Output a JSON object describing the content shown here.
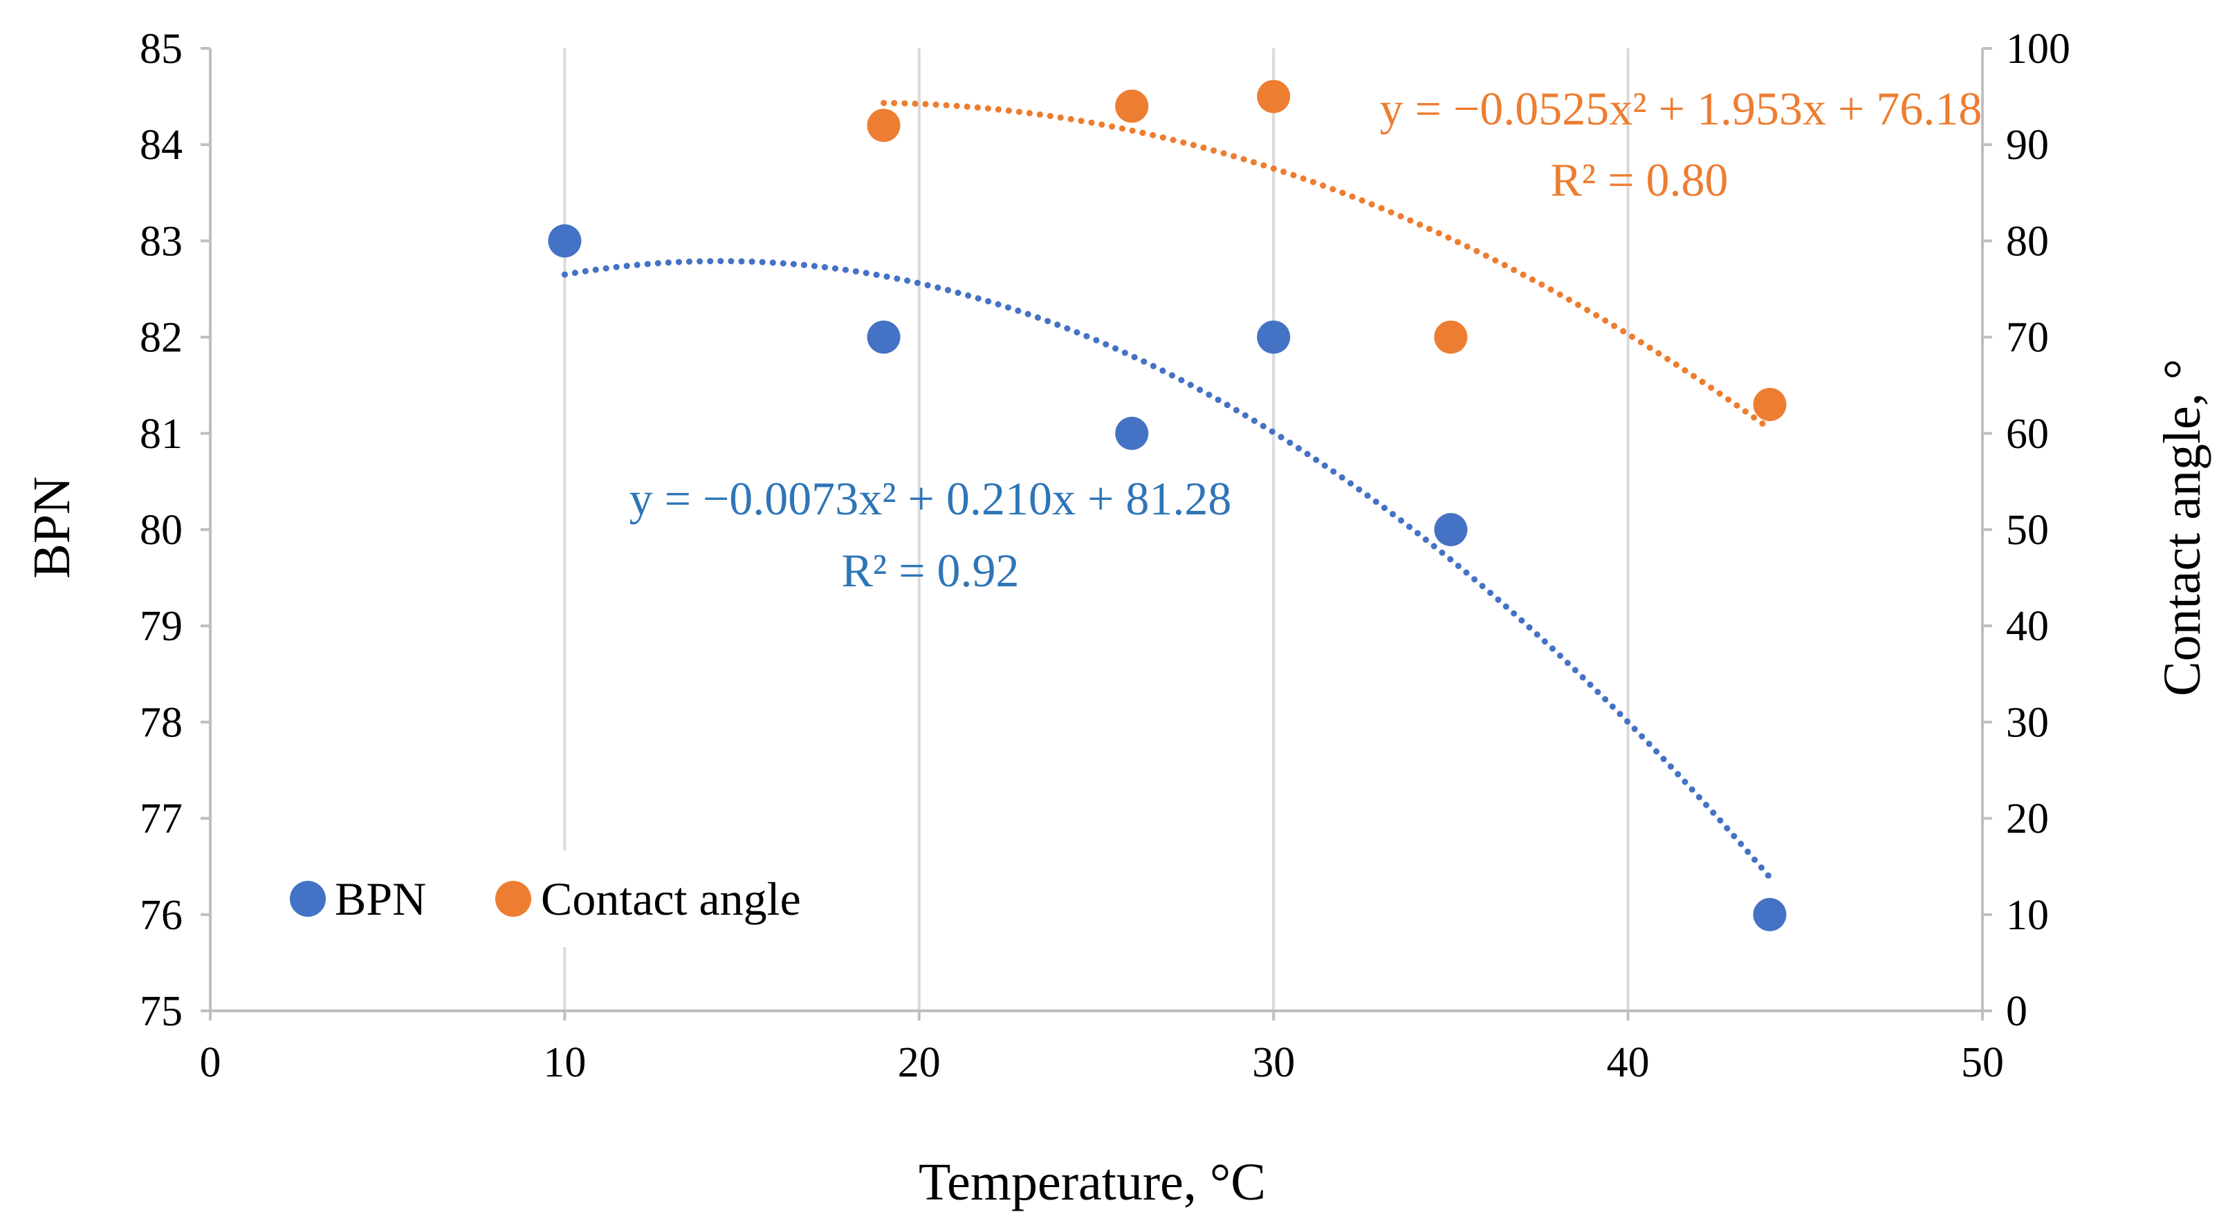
{
  "colors": {
    "bpn": "#4472c4",
    "contact": "#ed7d31",
    "bpn_text": "#2e75b6",
    "grid": "#d9d9d9"
  },
  "chart_data": {
    "type": "scatter",
    "xlabel": "Temperature, °C",
    "ylabel": "BPN",
    "y2label": "Contact angle, °",
    "xlim": [
      0,
      50
    ],
    "ylim": [
      75,
      85
    ],
    "y2lim": [
      0,
      100
    ],
    "x_ticks": [
      0,
      10,
      20,
      30,
      40,
      50
    ],
    "y_ticks": [
      75,
      76,
      77,
      78,
      79,
      80,
      81,
      82,
      83,
      84,
      85
    ],
    "y2_ticks": [
      0,
      10,
      20,
      30,
      40,
      50,
      60,
      70,
      80,
      90,
      100
    ],
    "grid": "vertical",
    "legend_position": "bottom-left",
    "series": [
      {
        "name": "BPN",
        "axis": "left",
        "color": "#4472c4",
        "points": [
          [
            10,
            83
          ],
          [
            19,
            82
          ],
          [
            26,
            81
          ],
          [
            30,
            82
          ],
          [
            35,
            80
          ],
          [
            44,
            76
          ]
        ],
        "trendline": {
          "type": "poly2",
          "a": -0.0073,
          "b": 0.21,
          "c": 81.28,
          "x_range": [
            10,
            44
          ]
        },
        "equation": "y = −0.0073x² + 0.210x + 81.28",
        "r2": "R² = 0.92"
      },
      {
        "name": "Contact angle",
        "axis": "right",
        "color": "#ed7d31",
        "points": [
          [
            19,
            92
          ],
          [
            26,
            94
          ],
          [
            30,
            95
          ],
          [
            35,
            70
          ],
          [
            44,
            63
          ]
        ],
        "trendline": {
          "type": "poly2",
          "a": -0.0525,
          "b": 1.953,
          "c": 76.18,
          "x_range": [
            19,
            44
          ]
        },
        "equation": "y = −0.0525x² + 1.953x + 76.18",
        "r2": "R² = 0.80"
      }
    ]
  }
}
